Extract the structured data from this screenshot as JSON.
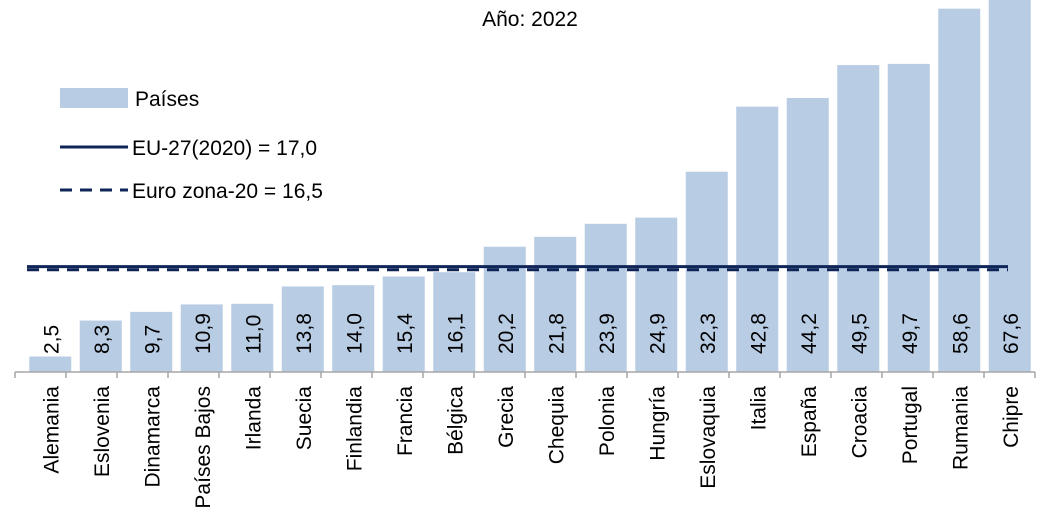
{
  "chart_data": {
    "type": "bar",
    "title": "Año: 2022",
    "categories": [
      "Alemania",
      "Eslovenia",
      "Dinamarca",
      "Países Bajos",
      "Irlanda",
      "Suecia",
      "Finlandia",
      "Francia",
      "Bélgica",
      "Grecia",
      "Chequia",
      "Polonia",
      "Hungría",
      "Eslovaquia",
      "Italia",
      "España",
      "Croacia",
      "Portugal",
      "Rumania",
      "Chipre"
    ],
    "series": [
      {
        "name": "Países",
        "color": "#b8cce4",
        "values": [
          2.5,
          8.3,
          9.7,
          10.9,
          11.0,
          13.8,
          14.0,
          15.4,
          16.1,
          20.2,
          21.8,
          23.9,
          24.9,
          32.3,
          42.8,
          44.2,
          49.5,
          49.7,
          58.6,
          67.6
        ],
        "value_labels": [
          "2,5",
          "8,3",
          "9,7",
          "10,9",
          "11,0",
          "13,8",
          "14,0",
          "15,4",
          "16,1",
          "20,2",
          "21,8",
          "23,9",
          "24,9",
          "32,3",
          "42,8",
          "44,2",
          "49,5",
          "49,7",
          "58,6",
          "67,6"
        ]
      }
    ],
    "reference_lines": [
      {
        "name": "EU-27(2020) = 17,0",
        "value": 17.0,
        "color": "#0f2557",
        "style": "solid"
      },
      {
        "name": "Euro zona-20 = 16,5",
        "value": 16.5,
        "color": "#0f2557",
        "style": "dashed"
      }
    ],
    "ylim": [
      0,
      60
    ],
    "legend": "upper left"
  }
}
